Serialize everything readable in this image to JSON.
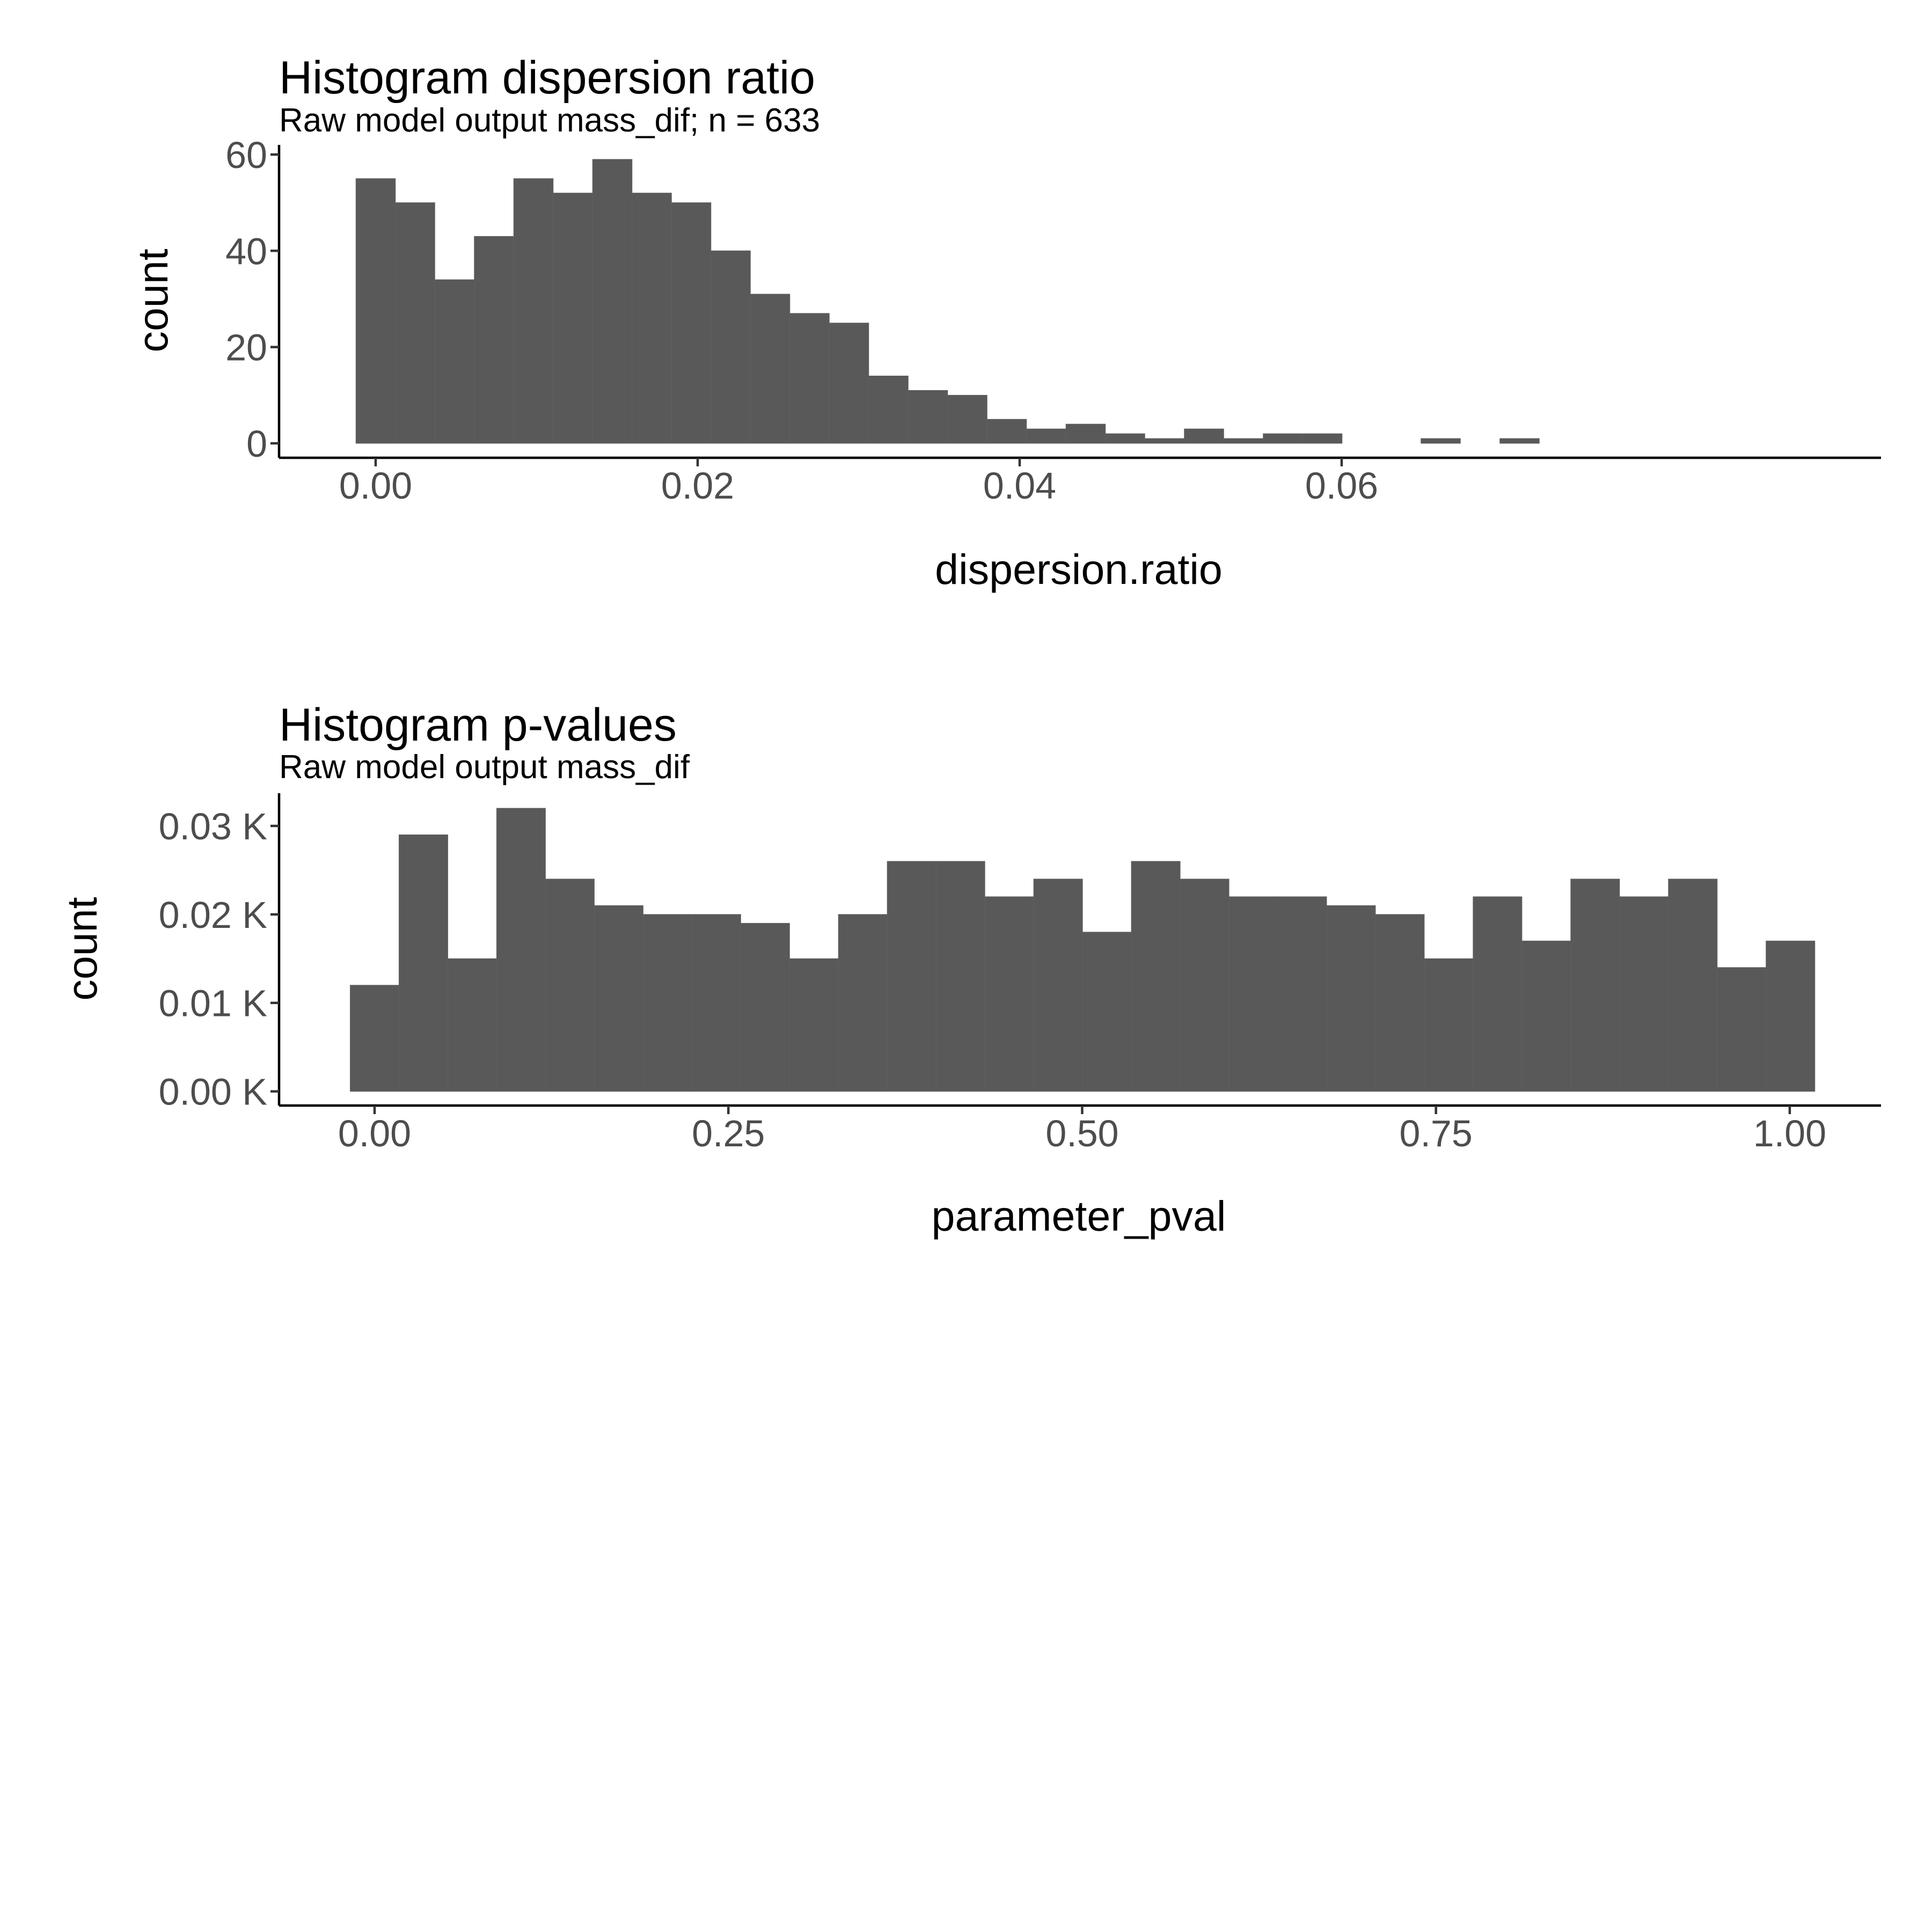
{
  "chart_data": [
    {
      "type": "bar",
      "title": "Histogram dispersion ratio",
      "subtitle": "Raw model output mass_dif; n = 633",
      "xlabel": "dispersion.ratio",
      "ylabel": "count",
      "bin_width": 0.00245,
      "bin_centers": [
        0.0,
        0.00245,
        0.0049,
        0.00735,
        0.0098,
        0.01225,
        0.0147,
        0.01715,
        0.0196,
        0.02205,
        0.0245,
        0.02695,
        0.0294,
        0.03185,
        0.0343,
        0.03675,
        0.0392,
        0.04165,
        0.0441,
        0.04655,
        0.049,
        0.05145,
        0.0539,
        0.05635,
        0.0588,
        0.06125,
        0.0637,
        0.06615,
        0.0686,
        0.07105
      ],
      "values": [
        55,
        50,
        34,
        43,
        55,
        52,
        59,
        52,
        50,
        40,
        31,
        27,
        25,
        14,
        11,
        10,
        5,
        3,
        4,
        2,
        1,
        3,
        1,
        2,
        2,
        0,
        0,
        1,
        0,
        1
      ],
      "xlim": [
        -0.006,
        0.0935
      ],
      "ylim": [
        -3,
        62
      ],
      "x_ticks": [
        0.0,
        0.02,
        0.04,
        0.06
      ],
      "x_tick_labels": [
        "0.00",
        "0.02",
        "0.04",
        "0.06"
      ],
      "y_ticks": [
        0,
        20,
        40,
        60
      ],
      "y_tick_labels": [
        "0",
        "20",
        "40",
        "60"
      ],
      "fill_color": "#595959",
      "grid": false
    },
    {
      "type": "bar",
      "title": "Histogram p-values",
      "subtitle": "Raw model output mass_dif",
      "xlabel": "parameter_pval",
      "ylabel": "count",
      "bin_width": 0.0345,
      "bin_centers": [
        0.0,
        0.0345,
        0.069,
        0.1035,
        0.138,
        0.1725,
        0.207,
        0.2415,
        0.276,
        0.3105,
        0.345,
        0.3795,
        0.414,
        0.4485,
        0.483,
        0.5175,
        0.552,
        0.5865,
        0.621,
        0.6555,
        0.69,
        0.7245,
        0.759,
        0.7935,
        0.828,
        0.8625,
        0.897,
        0.9315,
        0.966,
        1.0005
      ],
      "values": [
        12,
        29,
        15,
        32,
        24,
        21,
        20,
        20,
        19,
        15,
        20,
        26,
        26,
        22,
        24,
        18,
        26,
        24,
        22,
        22,
        21,
        20,
        15,
        22,
        17,
        24,
        22,
        24,
        14,
        17
      ],
      "xlim": [
        -0.0675,
        1.0645
      ],
      "ylim": [
        -1.6,
        33.7
      ],
      "x_ticks": [
        0.0,
        0.25,
        0.5,
        0.75,
        1.0
      ],
      "x_tick_labels": [
        "0.00",
        "0.25",
        "0.50",
        "0.75",
        "1.00"
      ],
      "y_ticks": [
        0,
        10,
        20,
        30
      ],
      "y_tick_labels": [
        "0.00 K",
        "0.01 K",
        "0.02 K",
        "0.03 K"
      ],
      "fill_color": "#595959",
      "grid": false
    }
  ]
}
